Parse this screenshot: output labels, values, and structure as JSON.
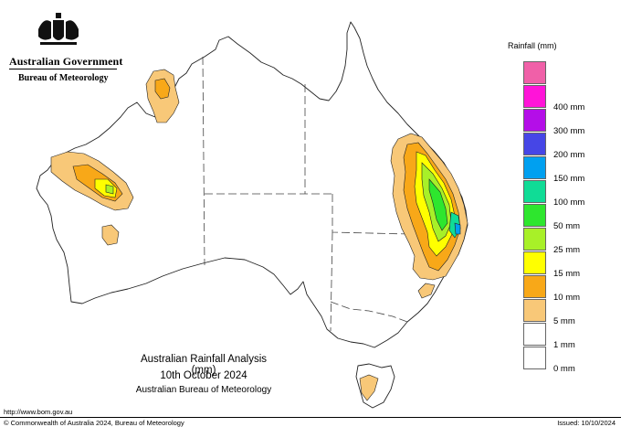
{
  "header": {
    "government": "Australian Government",
    "bureau": "Bureau of Meteorology"
  },
  "legend": {
    "title": "Rainfall (mm)",
    "items": [
      {
        "label": "",
        "color": "#f060a8"
      },
      {
        "label": "400 mm",
        "color": "#ff14d8"
      },
      {
        "label": "300 mm",
        "color": "#b40ee8"
      },
      {
        "label": "200 mm",
        "color": "#4646e6"
      },
      {
        "label": "150 mm",
        "color": "#00a0f0"
      },
      {
        "label": "100 mm",
        "color": "#10dc96"
      },
      {
        "label": "50 mm",
        "color": "#2ee62e"
      },
      {
        "label": "25 mm",
        "color": "#a8f028"
      },
      {
        "label": "15 mm",
        "color": "#ffff00"
      },
      {
        "label": "10 mm",
        "color": "#f8a818"
      },
      {
        "label": "5 mm",
        "color": "#f8c878"
      },
      {
        "label": "1 mm",
        "color": "#ffffff"
      },
      {
        "label": "0 mm",
        "color": "#ffffff"
      }
    ]
  },
  "title": {
    "line1": "Australian Rainfall Analysis (mm)",
    "line2": "10th October 2024",
    "line3": "Australian Bureau of Meteorology"
  },
  "footer": {
    "url": "http://www.bom.gov.au",
    "copyright": "© Commonwealth of Australia 2024, Bureau of Meteorology",
    "issued": "Issued: 10/10/2024"
  }
}
